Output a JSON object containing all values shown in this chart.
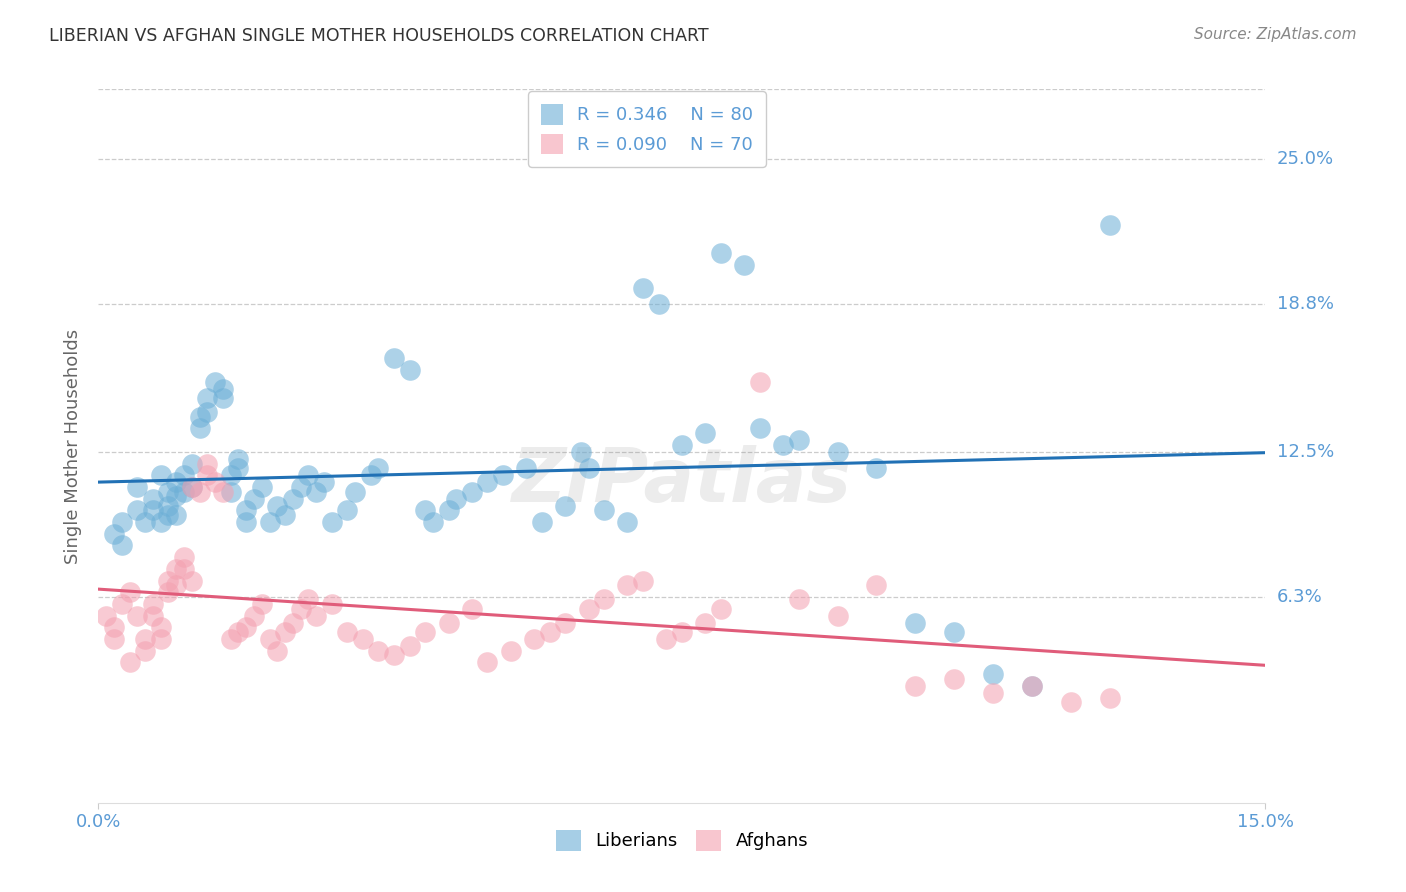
{
  "title": "LIBERIAN VS AFGHAN SINGLE MOTHER HOUSEHOLDS CORRELATION CHART",
  "source": "Source: ZipAtlas.com",
  "ylabel": "Single Mother Households",
  "ytick_labels": [
    "25.0%",
    "18.8%",
    "12.5%",
    "6.3%"
  ],
  "ytick_values": [
    0.25,
    0.188,
    0.125,
    0.063
  ],
  "xlim": [
    0.0,
    0.15
  ],
  "ylim": [
    -0.025,
    0.28
  ],
  "watermark": "ZIPatlas",
  "liberian_color": "#6baed6",
  "afghan_color": "#f4a0b0",
  "liberian_line_color": "#2171b5",
  "afghan_line_color": "#e05c7a",
  "legend_R1": "R = 0.346",
  "legend_N1": "N = 80",
  "legend_R2": "R = 0.090",
  "legend_N2": "N = 70",
  "liberian_x": [
    0.002,
    0.003,
    0.003,
    0.005,
    0.005,
    0.006,
    0.007,
    0.007,
    0.008,
    0.008,
    0.009,
    0.009,
    0.009,
    0.01,
    0.01,
    0.01,
    0.011,
    0.011,
    0.012,
    0.012,
    0.013,
    0.013,
    0.014,
    0.014,
    0.015,
    0.016,
    0.016,
    0.017,
    0.017,
    0.018,
    0.018,
    0.019,
    0.019,
    0.02,
    0.021,
    0.022,
    0.023,
    0.024,
    0.025,
    0.026,
    0.027,
    0.028,
    0.029,
    0.03,
    0.032,
    0.033,
    0.035,
    0.036,
    0.038,
    0.04,
    0.042,
    0.043,
    0.045,
    0.046,
    0.048,
    0.05,
    0.052,
    0.055,
    0.057,
    0.06,
    0.062,
    0.063,
    0.065,
    0.068,
    0.07,
    0.072,
    0.075,
    0.078,
    0.08,
    0.083,
    0.085,
    0.088,
    0.09,
    0.095,
    0.1,
    0.105,
    0.11,
    0.115,
    0.12,
    0.13
  ],
  "liberian_y": [
    0.09,
    0.095,
    0.085,
    0.11,
    0.1,
    0.095,
    0.105,
    0.1,
    0.115,
    0.095,
    0.108,
    0.102,
    0.098,
    0.112,
    0.106,
    0.098,
    0.115,
    0.108,
    0.12,
    0.11,
    0.14,
    0.135,
    0.148,
    0.142,
    0.155,
    0.148,
    0.152,
    0.108,
    0.115,
    0.118,
    0.122,
    0.1,
    0.095,
    0.105,
    0.11,
    0.095,
    0.102,
    0.098,
    0.105,
    0.11,
    0.115,
    0.108,
    0.112,
    0.095,
    0.1,
    0.108,
    0.115,
    0.118,
    0.165,
    0.16,
    0.1,
    0.095,
    0.1,
    0.105,
    0.108,
    0.112,
    0.115,
    0.118,
    0.095,
    0.102,
    0.125,
    0.118,
    0.1,
    0.095,
    0.195,
    0.188,
    0.128,
    0.133,
    0.21,
    0.205,
    0.135,
    0.128,
    0.13,
    0.125,
    0.118,
    0.052,
    0.048,
    0.03,
    0.025,
    0.222
  ],
  "afghan_x": [
    0.001,
    0.002,
    0.002,
    0.003,
    0.004,
    0.004,
    0.005,
    0.006,
    0.006,
    0.007,
    0.007,
    0.008,
    0.008,
    0.009,
    0.009,
    0.01,
    0.01,
    0.011,
    0.011,
    0.012,
    0.012,
    0.013,
    0.014,
    0.014,
    0.015,
    0.016,
    0.017,
    0.018,
    0.019,
    0.02,
    0.021,
    0.022,
    0.023,
    0.024,
    0.025,
    0.026,
    0.027,
    0.028,
    0.03,
    0.032,
    0.034,
    0.036,
    0.038,
    0.04,
    0.042,
    0.045,
    0.048,
    0.05,
    0.053,
    0.056,
    0.058,
    0.06,
    0.063,
    0.065,
    0.068,
    0.07,
    0.073,
    0.075,
    0.078,
    0.08,
    0.085,
    0.09,
    0.095,
    0.1,
    0.105,
    0.11,
    0.115,
    0.12,
    0.125,
    0.13
  ],
  "afghan_y": [
    0.055,
    0.05,
    0.045,
    0.06,
    0.035,
    0.065,
    0.055,
    0.045,
    0.04,
    0.06,
    0.055,
    0.05,
    0.045,
    0.07,
    0.065,
    0.075,
    0.068,
    0.08,
    0.075,
    0.07,
    0.11,
    0.108,
    0.115,
    0.12,
    0.112,
    0.108,
    0.045,
    0.048,
    0.05,
    0.055,
    0.06,
    0.045,
    0.04,
    0.048,
    0.052,
    0.058,
    0.062,
    0.055,
    0.06,
    0.048,
    0.045,
    0.04,
    0.038,
    0.042,
    0.048,
    0.052,
    0.058,
    0.035,
    0.04,
    0.045,
    0.048,
    0.052,
    0.058,
    0.062,
    0.068,
    0.07,
    0.045,
    0.048,
    0.052,
    0.058,
    0.155,
    0.062,
    0.055,
    0.068,
    0.025,
    0.028,
    0.022,
    0.025,
    0.018,
    0.02
  ],
  "grid_color": "#cccccc",
  "background_color": "#ffffff",
  "title_color": "#333333",
  "tick_color": "#5b9bd5",
  "source_color": "#888888"
}
